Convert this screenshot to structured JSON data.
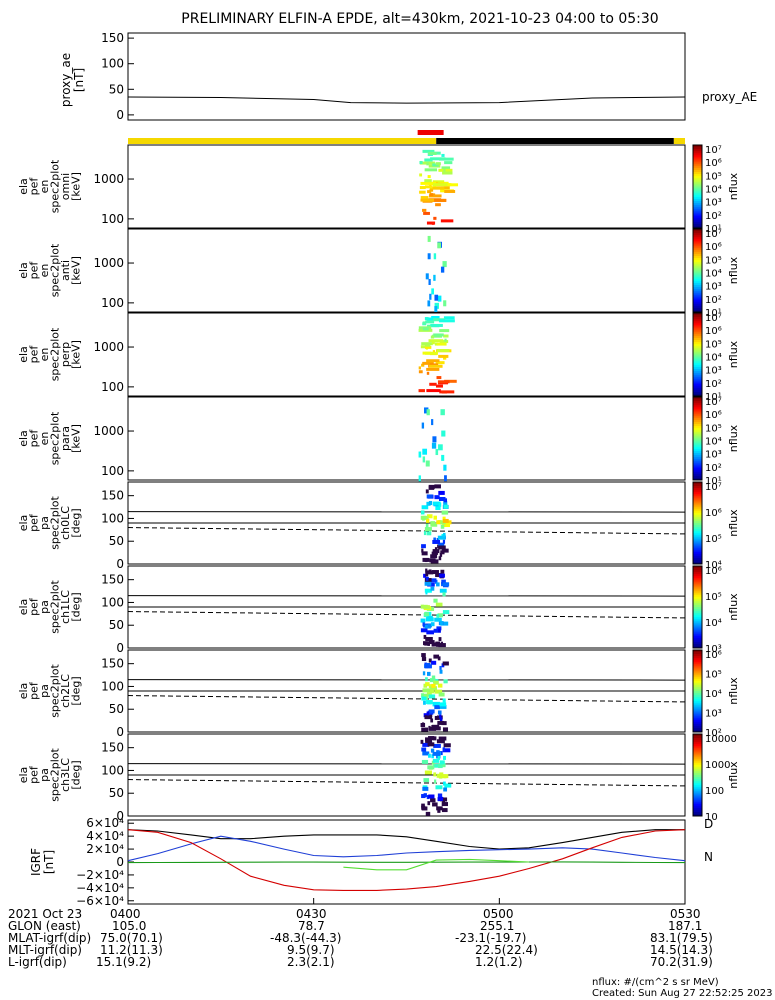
{
  "title": "PRELIMINARY ELFIN-A EPDE, alt=430km, 2021-10-23 04:00 to 05:30",
  "colors": {
    "ae_line": "#000000",
    "sat_bar_yellow": "#f5d800",
    "sat_bar_black": "#000000",
    "sat_bar_red": "#ee0000",
    "curve_black": "#000000",
    "curve_blue": "#1f3fd6",
    "curve_red": "#d40000",
    "curve_green": "#1a9a1a",
    "curve_lightgreen": "#55dd33"
  },
  "footer": {
    "row_date": {
      "label": "2021 Oct 23",
      "ticks": [
        "0400",
        "0430",
        "0500",
        "0530"
      ]
    },
    "rows": [
      {
        "label": "GLON (east)",
        "values": [
          "105.0",
          "78.7",
          "255.1",
          "187.1"
        ]
      },
      {
        "label": "MLAT-igrf(dip)",
        "values": [
          "75.0(70.1)",
          "-48.3(-44.3)",
          "-23.1(-19.7)",
          "83.1(79.5)"
        ]
      },
      {
        "label": "MLT-igrf(dip)",
        "values": [
          "11.2(11.3)",
          "9.5(9.7)",
          "22.5(22.4)",
          "14.5(14.3)"
        ]
      },
      {
        "label": "L-igrf(dip)",
        "values": [
          "15.1(9.2)",
          "2.3(2.1)",
          "1.2(1.2)",
          "70.2(31.9)"
        ]
      }
    ],
    "units_note": "nflux: #/(cm^2 s sr MeV)",
    "created": "Created: Sun Aug 27 22:52:25 2023"
  },
  "chart_data": [
    {
      "type": "line",
      "panel": "proxy_ae",
      "ylabel": "proxy_ae [nT]",
      "legend": "proxy_AE",
      "yticks": [
        "150",
        "100",
        "50",
        "0"
      ],
      "ylim": [
        -10,
        160
      ],
      "x_hours": [
        4.0,
        4.25,
        4.5,
        4.6,
        4.75,
        5.0,
        5.25,
        5.5
      ],
      "y": [
        35,
        34,
        30,
        24,
        23,
        24,
        33,
        35
      ]
    },
    {
      "type": "bar",
      "panel": "science_zone_bar",
      "segments": [
        {
          "color": "yellow",
          "from": 4.0,
          "to": 4.83
        },
        {
          "color": "black",
          "from": 4.83,
          "to": 5.47
        },
        {
          "color": "yellow",
          "from": 5.47,
          "to": 5.5
        }
      ],
      "red_marker": {
        "from": 4.78,
        "to": 4.85
      }
    },
    {
      "type": "heatmap",
      "panel": "en_spec_omni",
      "ylabel": [
        "ela",
        "pef",
        "en",
        "spec2plot",
        "omni",
        "[keV]"
      ],
      "yticks": [
        "1000",
        "100"
      ],
      "colorbar": {
        "label": "nflux",
        "ticks": [
          "10⁷",
          "10⁶",
          "10⁵",
          "10⁴",
          "10³",
          "10²",
          "10¹"
        ]
      }
    },
    {
      "type": "heatmap",
      "panel": "en_spec_anti",
      "ylabel": [
        "ela",
        "pef",
        "en",
        "spec2plot",
        "anti",
        "[keV]"
      ],
      "yticks": [
        "1000",
        "100"
      ],
      "colorbar": {
        "label": "nflux",
        "ticks": [
          "10⁷",
          "10⁶",
          "10⁵",
          "10⁴",
          "10³",
          "10²",
          "10¹"
        ]
      }
    },
    {
      "type": "heatmap",
      "panel": "en_spec_perp",
      "ylabel": [
        "ela",
        "pef",
        "en",
        "spec2plot",
        "perp",
        "[keV]"
      ],
      "yticks": [
        "1000",
        "100"
      ],
      "colorbar": {
        "label": "nflux",
        "ticks": [
          "10⁷",
          "10⁶",
          "10⁵",
          "10⁴",
          "10³",
          "10²",
          "10¹"
        ]
      }
    },
    {
      "type": "heatmap",
      "panel": "en_spec_para",
      "ylabel": [
        "ela",
        "pef",
        "en",
        "spec2plot",
        "para",
        "[keV]"
      ],
      "yticks": [
        "1000",
        "100"
      ],
      "colorbar": {
        "label": "nflux",
        "ticks": [
          "10⁷",
          "10⁶",
          "10⁵",
          "10⁴",
          "10³",
          "10²",
          "10¹"
        ]
      }
    },
    {
      "type": "heatmap",
      "panel": "pa_ch0LC",
      "ylabel": [
        "ela",
        "pef",
        "pa",
        "spec2plot",
        "ch0LC",
        "[deg]"
      ],
      "yticks": [
        "150",
        "100",
        "50",
        "0"
      ],
      "colorbar": {
        "label": "nflux",
        "ticks": [
          "10⁷",
          "10⁶",
          "10⁵",
          "10⁴"
        ]
      }
    },
    {
      "type": "heatmap",
      "panel": "pa_ch1LC",
      "ylabel": [
        "ela",
        "pef",
        "pa",
        "spec2plot",
        "ch1LC",
        "[deg]"
      ],
      "yticks": [
        "150",
        "100",
        "50",
        "0"
      ],
      "colorbar": {
        "label": "nflux",
        "ticks": [
          "10⁶",
          "10⁵",
          "10⁴",
          "10³"
        ]
      }
    },
    {
      "type": "heatmap",
      "panel": "pa_ch2LC",
      "ylabel": [
        "ela",
        "pef",
        "pa",
        "spec2plot",
        "ch2LC",
        "[deg]"
      ],
      "yticks": [
        "150",
        "100",
        "50",
        "0"
      ],
      "colorbar": {
        "label": "nflux",
        "ticks": [
          "10⁶",
          "10⁵",
          "10⁴",
          "10³",
          "10²"
        ]
      }
    },
    {
      "type": "heatmap",
      "panel": "pa_ch3LC",
      "ylabel": [
        "ela",
        "pef",
        "pa",
        "spec2plot",
        "ch3LC",
        "[deg]"
      ],
      "yticks": [
        "150",
        "100",
        "50",
        "0"
      ],
      "colorbar": {
        "label": "nflux",
        "ticks": [
          "10000",
          "1000",
          "100",
          "10"
        ]
      }
    },
    {
      "type": "line",
      "panel": "IGRF",
      "ylabel": "IGRF [nT]",
      "ylim": [
        -65000,
        65000
      ],
      "yticks": [
        "6×10⁴",
        "4×10⁴",
        "2×10⁴",
        "0",
        "−2×10⁴",
        "−4×10⁴",
        "−6×10⁴"
      ],
      "legend": [
        "D",
        "N"
      ],
      "x_hours": [
        4.0,
        4.08,
        4.17,
        4.25,
        4.33,
        4.42,
        4.5,
        4.58,
        4.67,
        4.75,
        4.83,
        4.92,
        5.0,
        5.08,
        5.17,
        5.25,
        5.33,
        5.42,
        5.5
      ],
      "series": [
        {
          "color": "black",
          "values": [
            50000,
            48000,
            42000,
            36000,
            36000,
            40000,
            42000,
            42000,
            42000,
            39000,
            32000,
            24000,
            20000,
            22000,
            30000,
            38000,
            46000,
            50000,
            50000
          ]
        },
        {
          "color": "blue",
          "values": [
            2000,
            13000,
            28000,
            40000,
            32000,
            20000,
            10000,
            8000,
            10000,
            14000,
            16000,
            18000,
            19000,
            20000,
            22000,
            20000,
            14000,
            7000,
            2000
          ]
        },
        {
          "color": "red",
          "values": [
            50000,
            46000,
            30000,
            5000,
            -22000,
            -36000,
            -43000,
            -44000,
            -44000,
            -42000,
            -38000,
            -30000,
            -22000,
            -10000,
            5000,
            22000,
            38000,
            48000,
            50000
          ]
        },
        {
          "color": "green",
          "values": [
            -1000,
            -800,
            -600,
            -400,
            -300,
            -200,
            -200,
            -300,
            -400,
            -400,
            -300,
            -200,
            -100,
            0,
            100,
            -100,
            -400,
            -700,
            -1000
          ]
        },
        {
          "color": "lightgreen",
          "values": [
            null,
            null,
            null,
            null,
            null,
            null,
            null,
            -8000,
            -12000,
            -12000,
            3000,
            4000,
            2000,
            0,
            null,
            null,
            null,
            null,
            null
          ]
        }
      ]
    }
  ]
}
